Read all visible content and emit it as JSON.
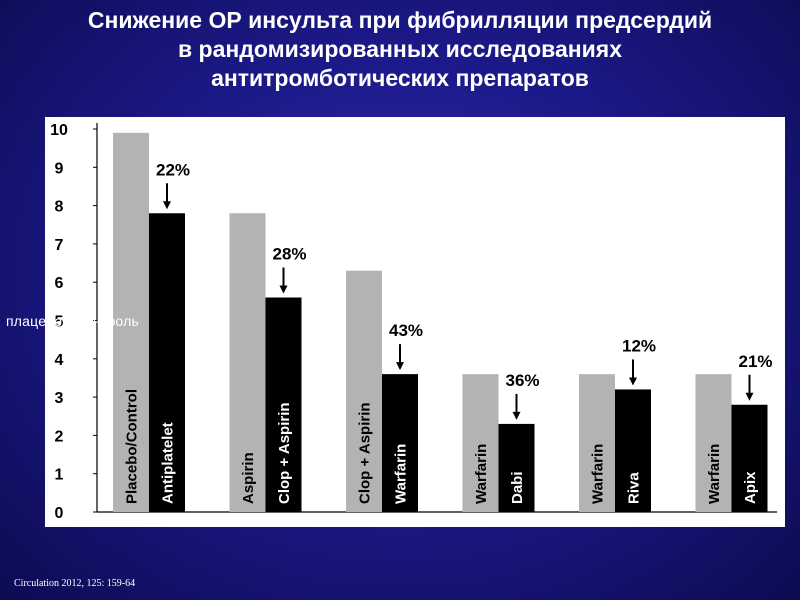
{
  "slide": {
    "title_lines": [
      "Снижение ОР инсульта при фибрилляции предсердий",
      "в рандомизированных исследованиях",
      "антитромботических препаратов"
    ],
    "overlay_text": "плацебо и контроль",
    "citation": "Circulation 2012, 125: 159-64"
  },
  "colors": {
    "control_bar": "#b3b3b3",
    "treatment_bar": "#000000",
    "background": "#1c1a8a",
    "panel": "#ffffff"
  },
  "chart_data": {
    "type": "bar",
    "title": "",
    "xlabel": "",
    "ylabel": "",
    "ylim": [
      0,
      10
    ],
    "yticks": [
      0,
      1,
      2,
      3,
      4,
      5,
      6,
      7,
      8,
      9,
      10
    ],
    "grid": false,
    "legend": "none",
    "groups": [
      {
        "control_label": "Placebo/Control",
        "control_value": 9.9,
        "treatment_label": "Antiplatelet",
        "treatment_value": 7.8,
        "reduction": "22%"
      },
      {
        "control_label": "Aspirin",
        "control_value": 7.8,
        "treatment_label": "Clop + Aspirin",
        "treatment_value": 5.6,
        "reduction": "28%"
      },
      {
        "control_label": "Clop + Aspirin",
        "control_value": 6.3,
        "treatment_label": "Warfarin",
        "treatment_value": 3.6,
        "reduction": "43%"
      },
      {
        "control_label": "Warfarin",
        "control_value": 3.6,
        "treatment_label": "Dabi",
        "treatment_value": 2.3,
        "reduction": "36%"
      },
      {
        "control_label": "Warfarin",
        "control_value": 3.6,
        "treatment_label": "Riva",
        "treatment_value": 3.2,
        "reduction": "12%"
      },
      {
        "control_label": "Warfarin",
        "control_value": 3.6,
        "treatment_label": "Apix",
        "treatment_value": 2.8,
        "reduction": "21%"
      }
    ]
  }
}
